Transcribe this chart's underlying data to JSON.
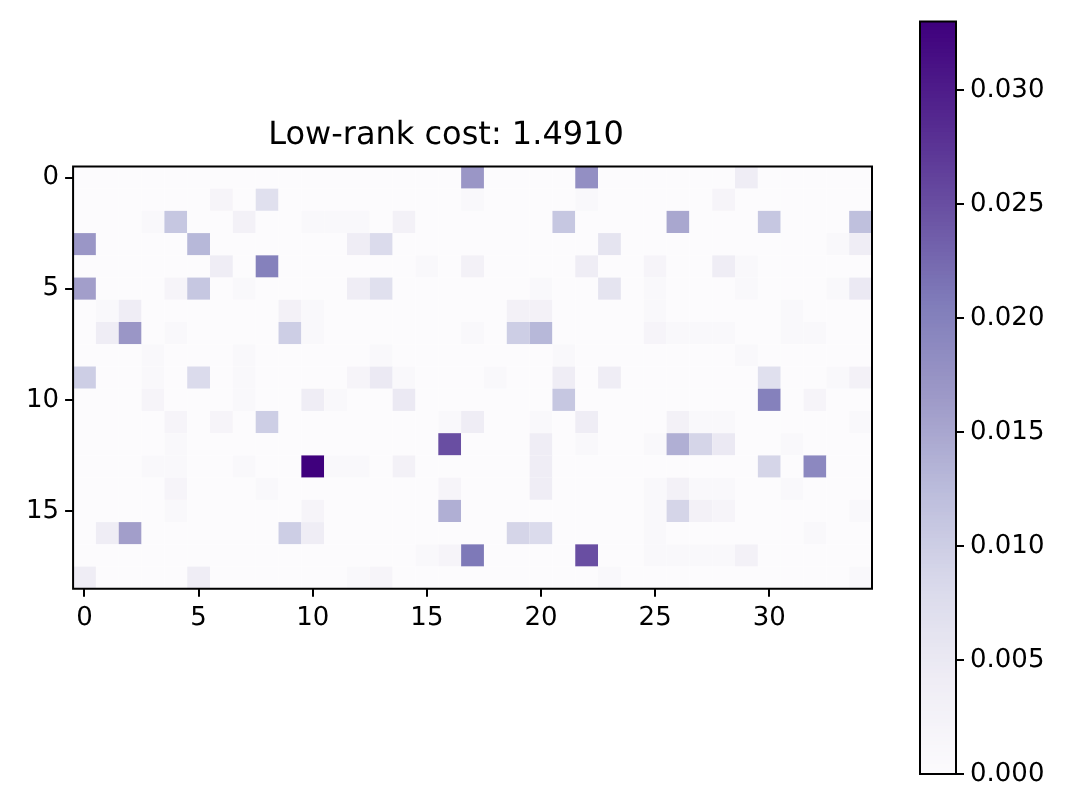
{
  "chart_data": {
    "type": "heatmap",
    "title": "Low-rank cost: 1.4910",
    "categories": [
      "0",
      null,
      null,
      null,
      null,
      "5",
      null,
      null,
      null,
      null,
      "10",
      null,
      null,
      null,
      null,
      "15",
      null,
      null,
      null,
      null,
      "20",
      null,
      null,
      null,
      null,
      "25",
      null,
      null,
      null,
      null,
      "30",
      null,
      null,
      null,
      null
    ],
    "y_categories": [
      "0",
      null,
      null,
      null,
      null,
      "5",
      null,
      null,
      null,
      null,
      "10",
      null,
      null,
      null,
      null,
      "15",
      null,
      null,
      null
    ],
    "cells": [
      [
        0,
        0,
        0,
        0,
        0,
        0,
        0,
        0,
        0,
        0,
        0,
        0,
        0,
        0,
        0,
        0,
        0,
        0.017,
        0,
        0,
        0,
        0,
        0.018,
        0,
        0,
        0,
        0,
        0,
        0,
        0.004,
        0,
        0,
        0,
        0,
        0
      ],
      [
        0,
        0,
        0,
        0,
        0,
        0,
        0.002,
        0,
        0.007,
        0,
        0,
        0,
        0,
        0,
        0,
        0,
        0,
        0.001,
        0,
        0,
        0,
        0,
        0.001,
        0,
        0,
        0,
        0,
        0,
        0.002,
        0,
        0,
        0,
        0,
        0,
        0
      ],
      [
        0,
        0,
        0,
        0.001,
        0.011,
        0,
        0,
        0.003,
        0,
        0,
        0.001,
        0.001,
        0.001,
        0,
        0.003,
        0,
        0,
        0,
        0,
        0,
        0,
        0.011,
        0,
        0,
        0,
        0,
        0.015,
        0,
        0,
        0,
        0.011,
        0,
        0,
        0,
        0.012
      ],
      [
        0.017,
        0,
        0,
        0,
        0,
        0.013,
        0,
        0,
        0,
        0,
        0,
        0,
        0.004,
        0.008,
        0,
        0,
        0,
        0,
        0,
        0,
        0,
        0,
        0,
        0.006,
        0,
        0,
        0,
        0,
        0,
        0,
        0,
        0,
        0,
        0.001,
        0.004
      ],
      [
        0,
        0,
        0,
        0,
        0,
        0,
        0.004,
        0,
        0.02,
        0,
        0,
        0,
        0,
        0,
        0,
        0.001,
        0,
        0.003,
        0,
        0,
        0,
        0,
        0.004,
        0,
        0,
        0.002,
        0,
        0,
        0.004,
        0.001,
        0,
        0,
        0,
        0,
        0
      ],
      [
        0.016,
        0,
        0,
        0,
        0.002,
        0.011,
        0,
        0.001,
        0,
        0,
        0,
        0,
        0.004,
        0.007,
        0,
        0,
        0,
        0,
        0,
        0,
        0.001,
        0,
        0,
        0.006,
        0,
        0.001,
        0,
        0,
        0,
        0.001,
        0,
        0,
        0,
        0.001,
        0.005
      ],
      [
        0,
        0.001,
        0.004,
        0,
        0,
        0,
        0,
        0,
        0,
        0.003,
        0.001,
        0,
        0,
        0,
        0,
        0,
        0,
        0,
        0,
        0.003,
        0.003,
        0,
        0,
        0,
        0,
        0.001,
        0,
        0,
        0,
        0,
        0,
        0.001,
        0,
        0,
        0
      ],
      [
        0,
        0.004,
        0.017,
        0,
        0.001,
        0,
        0,
        0,
        0,
        0.01,
        0.001,
        0,
        0,
        0,
        0,
        0,
        0,
        0.001,
        0,
        0.01,
        0.013,
        0,
        0,
        0,
        0,
        0.002,
        0.001,
        0.001,
        0.001,
        0,
        0,
        0.001,
        0.001,
        0,
        0
      ],
      [
        0,
        0,
        0,
        0.001,
        0,
        0,
        0,
        0.001,
        0,
        0,
        0,
        0,
        0,
        0.001,
        0,
        0,
        0,
        0,
        0,
        0,
        0,
        0.001,
        0,
        0,
        0,
        0,
        0,
        0,
        0,
        0.001,
        0,
        0,
        0,
        0,
        0
      ],
      [
        0.01,
        0,
        0,
        0.001,
        0,
        0.008,
        0,
        0.001,
        0,
        0,
        0,
        0,
        0.002,
        0.005,
        0.001,
        0,
        0,
        0,
        0.001,
        0,
        0,
        0.004,
        0,
        0.004,
        0,
        0,
        0,
        0,
        0,
        0,
        0.007,
        0,
        0,
        0.001,
        0.003
      ],
      [
        0,
        0,
        0,
        0.002,
        0,
        0,
        0,
        0.001,
        0,
        0,
        0.004,
        0.001,
        0,
        0,
        0.005,
        0,
        0,
        0,
        0,
        0,
        0,
        0.011,
        0,
        0,
        0,
        0,
        0,
        0,
        0,
        0,
        0.02,
        0,
        0.002,
        0,
        0
      ],
      [
        0,
        0,
        0,
        0,
        0.002,
        0,
        0.002,
        0,
        0.01,
        0,
        0,
        0,
        0,
        0,
        0,
        0,
        0.001,
        0.004,
        0,
        0,
        0.001,
        0,
        0.004,
        0,
        0,
        0,
        0.003,
        0.001,
        0.001,
        0,
        0,
        0,
        0,
        0,
        0.001
      ],
      [
        0,
        0,
        0,
        0,
        0.001,
        0,
        0,
        0,
        0,
        0,
        0,
        0,
        0,
        0,
        0,
        0,
        0.025,
        0,
        0,
        0,
        0.004,
        0,
        0.001,
        0,
        0,
        0.001,
        0.014,
        0.009,
        0.005,
        0,
        0,
        0.001,
        0,
        0,
        0
      ],
      [
        0,
        0,
        0,
        0.001,
        0.001,
        0,
        0,
        0.001,
        0,
        0,
        0.033,
        0.001,
        0.001,
        0,
        0.003,
        0,
        0,
        0,
        0,
        0,
        0.004,
        0,
        0,
        0,
        0,
        0,
        0,
        0,
        0,
        0,
        0.009,
        0,
        0.019,
        0,
        0
      ],
      [
        0,
        0,
        0,
        0,
        0.002,
        0,
        0,
        0,
        0.001,
        0,
        0,
        0,
        0,
        0,
        0,
        0,
        0.002,
        0,
        0,
        0,
        0.004,
        0,
        0,
        0,
        0,
        0.001,
        0.003,
        0.001,
        0.001,
        0,
        0,
        0.001,
        0,
        0,
        0
      ],
      [
        0,
        0,
        0,
        0,
        0.001,
        0,
        0,
        0,
        0,
        0,
        0.002,
        0,
        0,
        0,
        0,
        0,
        0.014,
        0,
        0,
        0,
        0,
        0,
        0,
        0,
        0,
        0.001,
        0.009,
        0.003,
        0.002,
        0,
        0,
        0,
        0,
        0,
        0.001
      ],
      [
        0,
        0.004,
        0.016,
        0,
        0,
        0,
        0,
        0,
        0,
        0.01,
        0.004,
        0,
        0,
        0,
        0,
        0,
        0,
        0,
        0,
        0.009,
        0.008,
        0,
        0,
        0,
        0,
        0.001,
        0,
        0,
        0,
        0,
        0,
        0,
        0.001,
        0,
        0
      ],
      [
        0,
        0,
        0,
        0,
        0,
        0,
        0,
        0,
        0,
        0,
        0,
        0,
        0,
        0,
        0,
        0.001,
        0.002,
        0.021,
        0,
        0,
        0,
        0,
        0.025,
        0,
        0,
        0.001,
        0.001,
        0.001,
        0.001,
        0.003,
        0,
        0,
        0,
        0,
        0
      ],
      [
        0.004,
        0,
        0,
        0,
        0,
        0.004,
        0,
        0,
        0,
        0,
        0,
        0,
        0.001,
        0.002,
        0,
        0,
        0,
        0,
        0,
        0,
        0,
        0,
        0,
        0.001,
        0,
        0,
        0,
        0,
        0,
        0,
        0,
        0,
        0,
        0,
        0.001
      ]
    ],
    "clim": [
      0,
      0.033
    ],
    "cticks": [
      {
        "value": 0,
        "label": "0.000"
      },
      {
        "value": 0.005,
        "label": "0.005"
      },
      {
        "value": 0.01,
        "label": "0.010"
      },
      {
        "value": 0.015,
        "label": "0.015"
      },
      {
        "value": 0.02,
        "label": "0.020"
      },
      {
        "value": 0.025,
        "label": "0.025"
      },
      {
        "value": 0.03,
        "label": "0.030"
      }
    ]
  }
}
